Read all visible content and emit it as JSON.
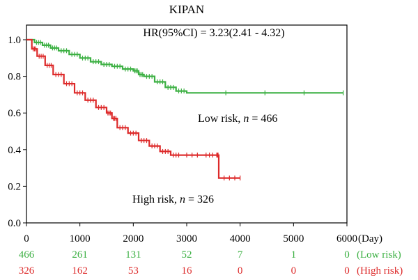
{
  "chart_data": {
    "type": "line",
    "subtype": "kaplan-meier",
    "title": "KIPAN",
    "annotation": "HR(95%CI) = 3.23(2.41 - 4.32)",
    "xlim": [
      0,
      6000
    ],
    "ylim": [
      0,
      1.08
    ],
    "x_ticks": [
      0,
      1000,
      2000,
      3000,
      4000,
      5000,
      6000
    ],
    "x_tick_labels": [
      "0",
      "1000",
      "2000",
      "3000",
      "4000",
      "5000",
      "6000"
    ],
    "x_unit_label": "(Day)",
    "y_ticks": [
      0.0,
      0.2,
      0.4,
      0.6,
      0.8,
      1.0
    ],
    "y_tick_labels": [
      "0.0",
      "0.2",
      "0.4",
      "0.6",
      "0.8",
      "1.0"
    ],
    "series": [
      {
        "name": "Low risk",
        "color": "#3cb043",
        "curve_label": {
          "prefix": "Low risk, ",
          "n_symbol": "n",
          "suffix": " = 466"
        },
        "points": [
          [
            0,
            1.0
          ],
          [
            150,
            0.985
          ],
          [
            300,
            0.97
          ],
          [
            450,
            0.955
          ],
          [
            600,
            0.94
          ],
          [
            800,
            0.92
          ],
          [
            1000,
            0.9
          ],
          [
            1200,
            0.88
          ],
          [
            1400,
            0.865
          ],
          [
            1600,
            0.855
          ],
          [
            1800,
            0.84
          ],
          [
            2000,
            0.83
          ],
          [
            2100,
            0.81
          ],
          [
            2200,
            0.8
          ],
          [
            2400,
            0.77
          ],
          [
            2600,
            0.74
          ],
          [
            2800,
            0.72
          ],
          [
            3000,
            0.71
          ],
          [
            5930,
            0.71
          ]
        ],
        "at_risk": [
          "466",
          "261",
          "131",
          "52",
          "7",
          "1",
          "0"
        ],
        "at_risk_label": "(Low risk)"
      },
      {
        "name": "High risk",
        "color": "#dd2a2a",
        "curve_label": {
          "prefix": "High risk, ",
          "n_symbol": "n",
          "suffix": " = 326"
        },
        "points": [
          [
            0,
            1.0
          ],
          [
            100,
            0.95
          ],
          [
            200,
            0.91
          ],
          [
            350,
            0.86
          ],
          [
            500,
            0.81
          ],
          [
            700,
            0.76
          ],
          [
            900,
            0.71
          ],
          [
            1100,
            0.67
          ],
          [
            1300,
            0.63
          ],
          [
            1500,
            0.6
          ],
          [
            1600,
            0.57
          ],
          [
            1700,
            0.52
          ],
          [
            1900,
            0.49
          ],
          [
            2100,
            0.45
          ],
          [
            2300,
            0.42
          ],
          [
            2500,
            0.39
          ],
          [
            2700,
            0.37
          ],
          [
            2900,
            0.37
          ],
          [
            3300,
            0.37
          ],
          [
            3550,
            0.37
          ],
          [
            3600,
            0.245
          ],
          [
            4000,
            0.245
          ]
        ],
        "at_risk": [
          "326",
          "162",
          "53",
          "16",
          "0",
          "0",
          "0"
        ],
        "at_risk_label": "(High risk)"
      }
    ],
    "grid": false,
    "legend": "none"
  }
}
